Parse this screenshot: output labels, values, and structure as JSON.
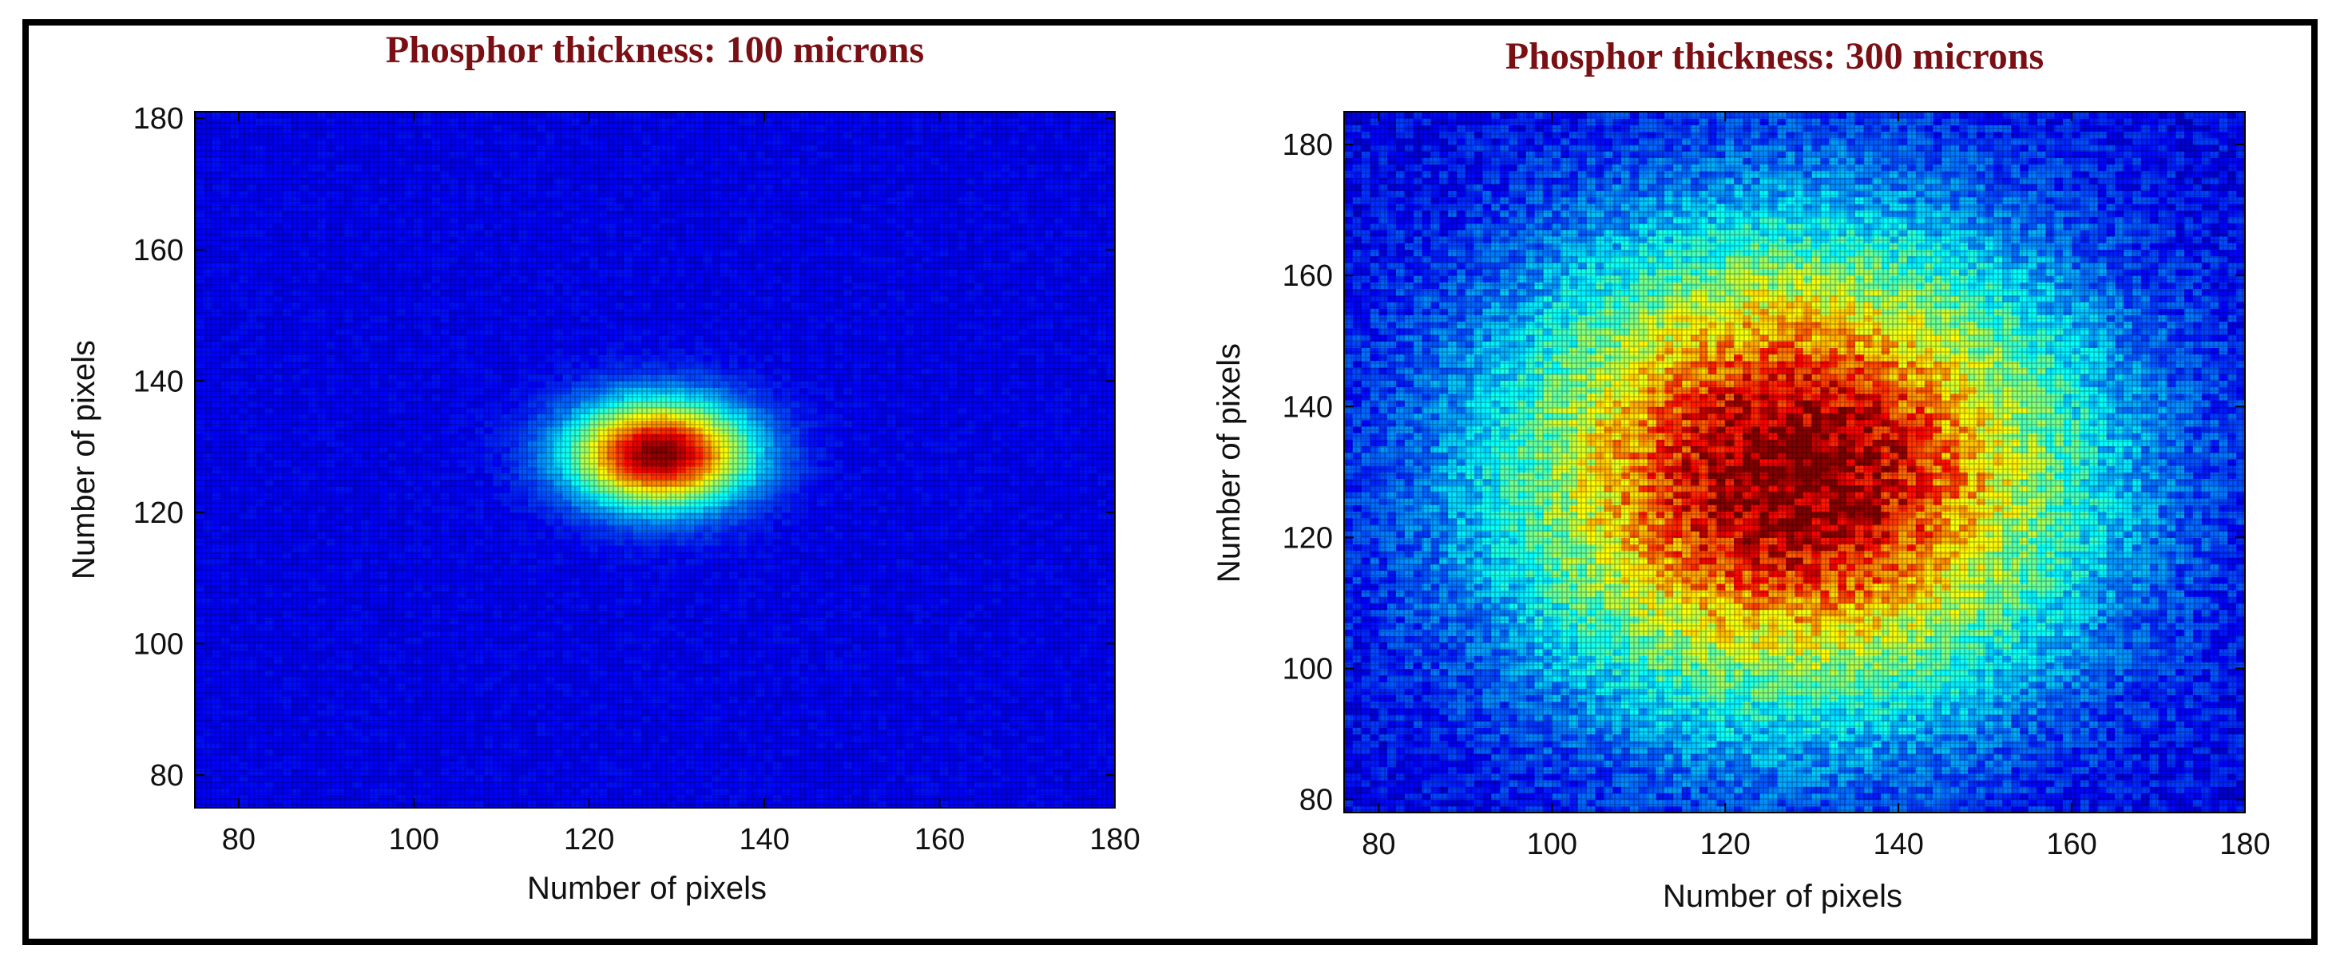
{
  "colors": {
    "title": "#7a0f14",
    "frame": "#000000",
    "axis": "#000000"
  },
  "chart_data": [
    {
      "type": "heatmap",
      "title": "Phosphor thickness: 100 microns",
      "xlabel": "Number of pixels",
      "ylabel": "Number of pixels",
      "xlim": [
        75,
        180
      ],
      "ylim": [
        75,
        181
      ],
      "xticks": [
        80,
        100,
        120,
        140,
        160,
        180
      ],
      "yticks": [
        80,
        100,
        120,
        140,
        160,
        180
      ],
      "xtick_labels": [
        "80",
        "100",
        "120",
        "140",
        "160",
        "180"
      ],
      "ytick_labels": [
        "80",
        "100",
        "120",
        "140",
        "160",
        "180"
      ],
      "peak": {
        "x": 128,
        "y": 129,
        "value": 1.0
      },
      "spread_sigma": {
        "x": 7,
        "y": 5.5
      },
      "background_level": 0.12,
      "colormap": "jet"
    },
    {
      "type": "heatmap",
      "title": "Phosphor thickness: 300 microns",
      "xlabel": "Number of pixels",
      "ylabel": "Number of pixels",
      "xlim": [
        76,
        180
      ],
      "ylim": [
        78,
        185
      ],
      "xticks": [
        80,
        100,
        120,
        140,
        160,
        180
      ],
      "yticks": [
        80,
        100,
        120,
        140,
        160,
        180
      ],
      "xtick_labels": [
        "80",
        "100",
        "120",
        "140",
        "160",
        "180"
      ],
      "ytick_labels": [
        "80",
        "100",
        "120",
        "140",
        "160",
        "180"
      ],
      "peak": {
        "x": 128,
        "y": 130,
        "value": 1.0
      },
      "spread_sigma": {
        "x": 22,
        "y": 24
      },
      "background_level": 0.12,
      "colormap": "jet"
    }
  ]
}
